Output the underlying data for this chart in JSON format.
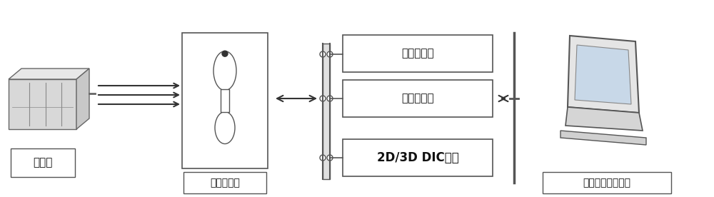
{
  "bg_color": "#ffffff",
  "fig_width": 10.0,
  "fig_height": 2.76,
  "dpi": 100,
  "labels": {
    "laser": "激光器",
    "material_tester": "材料试验机",
    "infrared": "红外热像仪",
    "data_collector": "数据采集仪",
    "dic_system": "2D/3D DIC系统",
    "computer": "上位机与软件系统"
  },
  "arrow_color": "#333333",
  "box_edge_color": "#555555",
  "text_color": "#111111",
  "font_size_label": 10,
  "font_size_dic": 11
}
